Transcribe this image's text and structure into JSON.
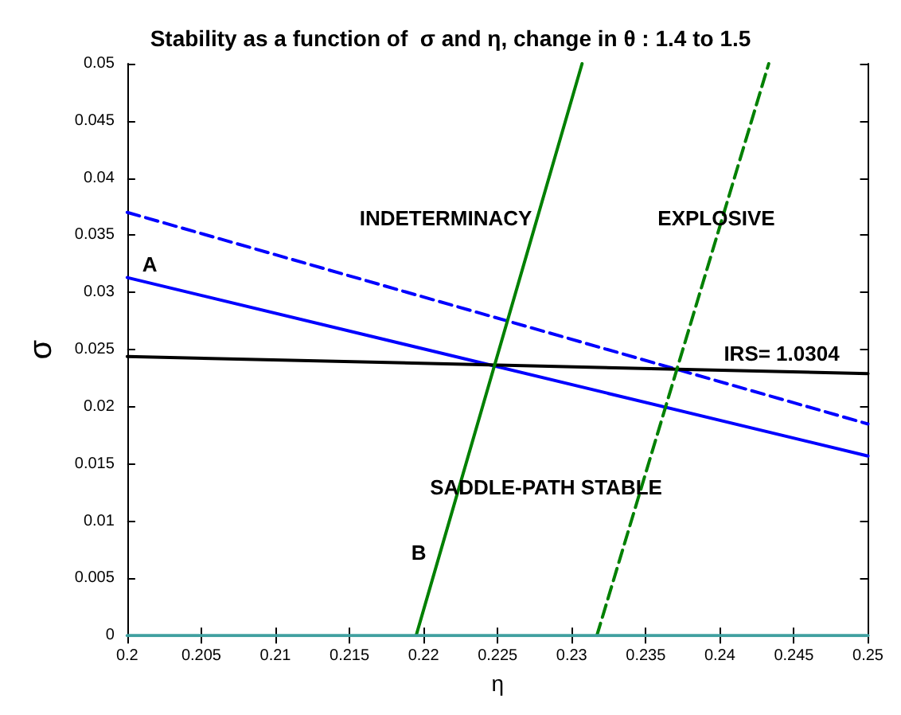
{
  "chart_data": {
    "type": "line",
    "title": "Stability as a function of  σ and η, change in θ : 1.4 to 1.5",
    "xlabel": "η",
    "ylabel": "σ",
    "xlim": [
      0.2,
      0.25
    ],
    "xticks": [
      0.2,
      0.205,
      0.21,
      0.215,
      0.22,
      0.225,
      0.23,
      0.235,
      0.24,
      0.245,
      0.25
    ],
    "ylim": [
      0,
      0.05
    ],
    "yticks": [
      0,
      0.005,
      0.01,
      0.015,
      0.02,
      0.025,
      0.03,
      0.035,
      0.04,
      0.045,
      0.05
    ],
    "grid": false,
    "marker": "none",
    "series": [
      {
        "color": "#0000ff",
        "line_style": "solid",
        "x": [
          0.2,
          0.25
        ],
        "values": [
          0.0313,
          0.0157
        ]
      },
      {
        "color": "#0000ff",
        "line_style": "dashed",
        "x": [
          0.2,
          0.25
        ],
        "values": [
          0.037,
          0.0185
        ]
      },
      {
        "color": "#000000",
        "line_style": "solid",
        "x": [
          0.2,
          0.25
        ],
        "values": [
          0.0244,
          0.0229
        ]
      },
      {
        "color": "#008000",
        "line_style": "solid",
        "x": [
          0.2195,
          0.2307
        ],
        "values": [
          0,
          0.05
        ]
      },
      {
        "color": "#008000",
        "line_style": "dashed",
        "x": [
          0.2317,
          0.2433
        ],
        "values": [
          0,
          0.05
        ]
      },
      {
        "color": "#40a0a0",
        "line_style": "solid",
        "x": [
          0.2,
          0.25
        ],
        "values": [
          0,
          0
        ]
      }
    ],
    "annotations": [
      "INDETERMINACY",
      "EXPLOSIVE",
      "A",
      "IRS= 1.0304",
      "SADDLE-PATH STABLE",
      "B"
    ]
  }
}
